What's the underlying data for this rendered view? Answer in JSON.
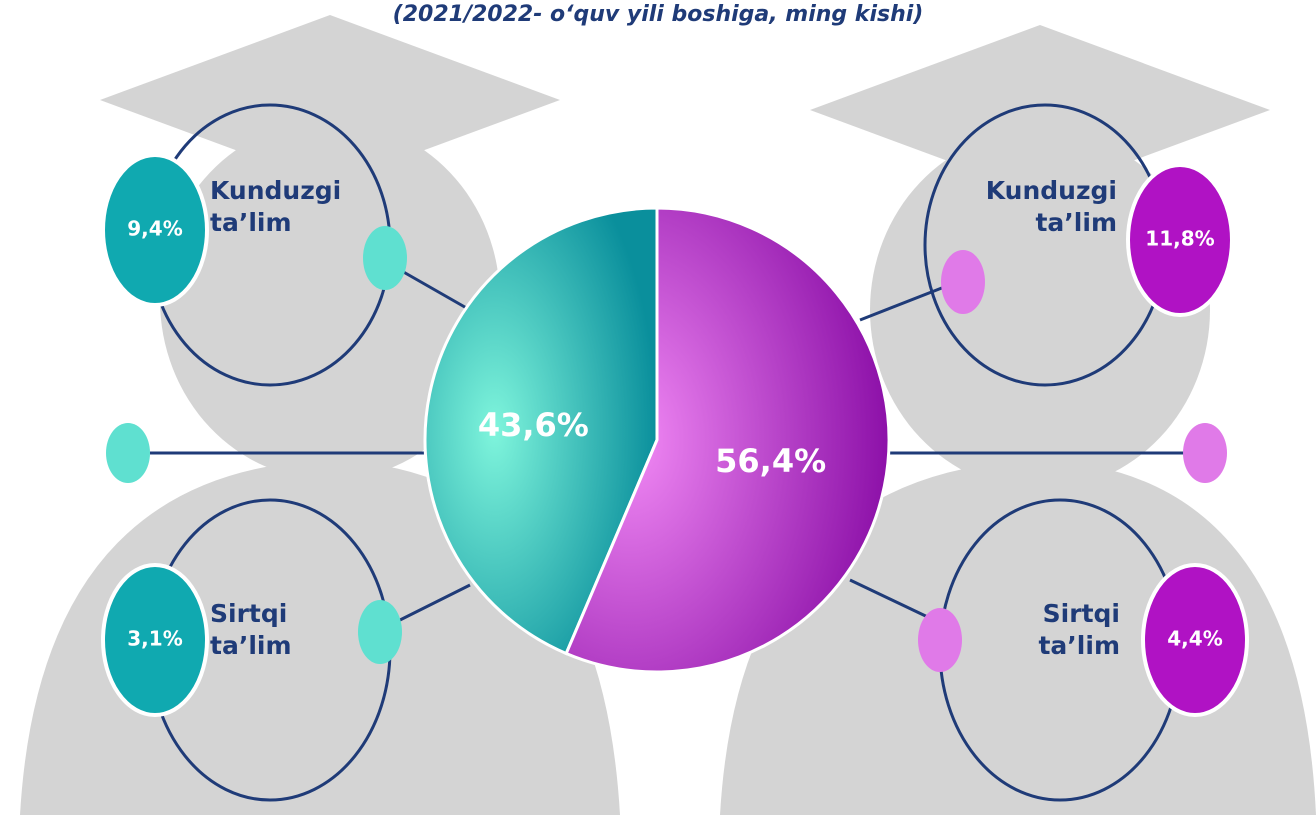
{
  "chart_data": {
    "type": "pie",
    "subtitle": "(2021/2022- o‘quv yili boshiga, ming kishi)",
    "categories": [
      null,
      null
    ],
    "values": [
      43.6,
      56.4
    ],
    "value_labels": [
      "43,6%",
      "56,4%"
    ],
    "colors": [
      "#10a9b0",
      "#b012c4"
    ],
    "annotations": [
      {
        "text": "Kunduzgi ta’lim",
        "value": 9.4,
        "value_label": "9,4%",
        "color": "#10a9b0"
      },
      {
        "text": "Sirtqi ta’lim",
        "value": 3.1,
        "value_label": "3,1%",
        "color": "#10a9b0"
      },
      {
        "text": "Kunduzgi ta’lim",
        "value": 11.8,
        "value_label": "11,8%",
        "color": "#b012c4"
      },
      {
        "text": "Sirtqi ta’lim",
        "value": 4.4,
        "value_label": "4,4%",
        "color": "#b012c4"
      }
    ]
  }
}
